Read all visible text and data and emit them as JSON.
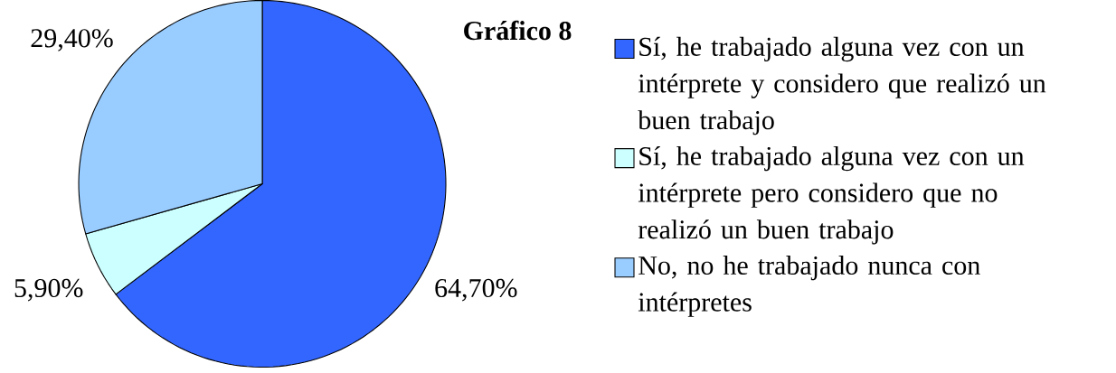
{
  "chart_data": {
    "type": "pie",
    "title": "Gráfico 8",
    "categories": [
      "Sí, he trabajado alguna vez con un intérprete y considero que realizó un buen trabajo",
      "Sí, he trabajado alguna vez con un intérprete pero considero que no realizó un buen trabajo",
      "No, no he trabajado nunca con intérpretes"
    ],
    "values": [
      64.7,
      5.9,
      29.4
    ],
    "value_labels": [
      "64,70%",
      "5,90%",
      "29,40%"
    ],
    "colors": [
      "#3366ff",
      "#ccffff",
      "#99ccff"
    ],
    "legend": "right"
  }
}
